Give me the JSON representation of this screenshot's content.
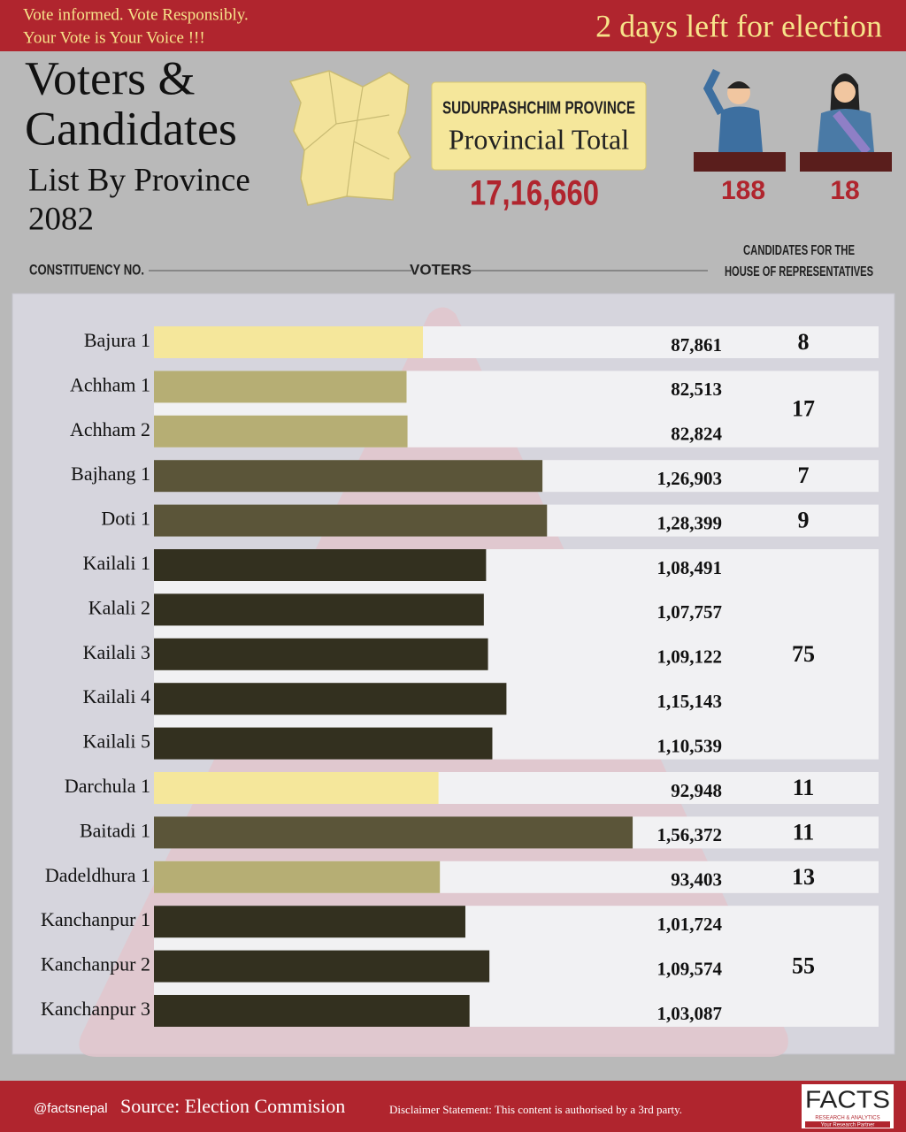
{
  "header": {
    "slogan": [
      "Vote informed. Vote Responsibly.",
      "Your Vote is Your Voice !!!"
    ],
    "countdown": "2 days left for election"
  },
  "title": {
    "lines": [
      "Voters &",
      "Candidates"
    ],
    "subtitle": [
      "List By Province",
      "2082"
    ]
  },
  "province": {
    "name": "SUDURPASHCHIM PROVINCE",
    "label": "Provincial Total",
    "total": "17,16,660",
    "male_candidates": "188",
    "female_candidates": "18"
  },
  "columns": {
    "constituency": "CONSTITUENCY NO.",
    "voters": "VOTERS",
    "candidates": [
      "CANDIDATES FOR THE",
      "HOUSE OF REPRESENTATIVES"
    ]
  },
  "chart_data": {
    "type": "bar",
    "categories": [
      "Bajura 1",
      "Achham 1",
      "Achham 2",
      "Bajhang 1",
      "Doti 1",
      "Kailali 1",
      "Kalali 2",
      "Kailali 3",
      "Kailali 4",
      "Kailali 5",
      "Darchula 1",
      "Baitadi 1",
      "Dadeldhura 1",
      "Kanchanpur 1",
      "Kanchanpur 2",
      "Kanchanpur 3"
    ],
    "values": [
      87861,
      82513,
      82824,
      126903,
      128399,
      108491,
      107757,
      109122,
      115143,
      110539,
      92948,
      156372,
      93403,
      101724,
      109574,
      103087
    ],
    "value_labels": [
      "87,861",
      "82,513",
      "82,824",
      "1,26,903",
      "1,28,399",
      "1,08,491",
      "1,07,757",
      "1,09,122",
      "1,15,143",
      "1,10,539",
      "92,948",
      "1,56,372",
      "93,403",
      "1,01,724",
      "1,09,574",
      "1,03,087"
    ],
    "colors": [
      "#f5e79b",
      "#b6ae74",
      "#b6ae74",
      "#5b5539",
      "#5b5539",
      "#33301f",
      "#33301f",
      "#33301f",
      "#33301f",
      "#33301f",
      "#f5e79b",
      "#5b5539",
      "#b6ae74",
      "#33301f",
      "#33301f",
      "#33301f"
    ],
    "candidates": [
      8,
      17,
      null,
      7,
      9,
      75,
      null,
      null,
      null,
      null,
      11,
      11,
      13,
      55,
      null,
      null
    ],
    "xlim": [
      0,
      236700
    ]
  },
  "footer": {
    "handle": "@factsnepal",
    "source": "Source: Election Commision",
    "disclaimer": "Disclaimer Statement: This content is authorised by a 3rd party.",
    "logo": "FACTS",
    "logo_sub": "RESEARCH & ANALYTICS",
    "logo_tag": "Your Research Partner"
  }
}
